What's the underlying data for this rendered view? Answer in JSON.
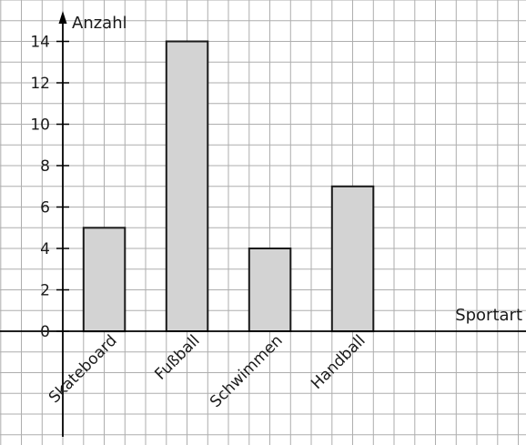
{
  "chart_data": {
    "type": "bar",
    "categories": [
      "Skateboard",
      "Fußball",
      "Schwimmen",
      "Handball"
    ],
    "values": [
      5,
      14,
      4,
      7
    ],
    "xlabel": "Sportart",
    "ylabel": "Anzahl",
    "ylim": [
      0,
      14
    ],
    "yticks": [
      0,
      2,
      4,
      6,
      8,
      10,
      12,
      14
    ],
    "ytick_labels": [
      "0",
      "2",
      "4",
      "6",
      "8",
      "10",
      "12",
      "14"
    ],
    "grid": true,
    "bar_color": "#d3d3d3",
    "grid_color": "#aeaeae"
  }
}
